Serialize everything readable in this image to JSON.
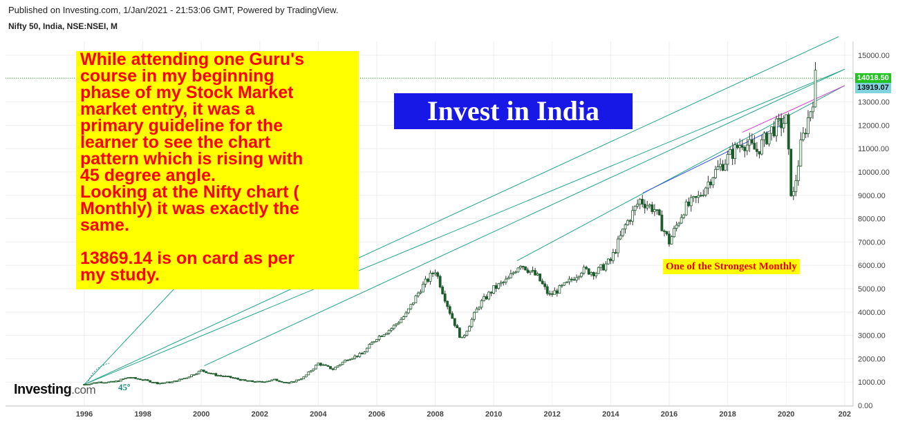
{
  "header": {
    "published": "Published on Investing.com, 1/Jan/2021 - 21:53:06 GMT, Powered by TradingView.",
    "symbol": "Nifty 50, India, NSE:NSEI, M"
  },
  "annotations": {
    "note": "While attending one Guru's\ncourse in my beginning\nphase of my Stock Market\nmarket entry, it was a\nprimary guideline for the\nlearner to see the chart\npattern which is rising with\n45 degree angle.\nLooking at the Nifty chart (\nMonthly) it was exactly the\nsame.\n\n13869.14 is on card as per\nmy study.",
    "banner": "Invest in India",
    "strongest": "One of the Strongest Monthly",
    "angle": "45º"
  },
  "logo": {
    "main": "Investing",
    "suffix": ".com"
  },
  "price_tags": {
    "last": "14018.50",
    "secondary": "13919.07"
  },
  "colors": {
    "up": "#26a69a",
    "down": "#ef5350",
    "trend": "#1fa58a",
    "blue_trend": "#2f4fe0",
    "magenta_trend": "#d63ad6",
    "last_tag": "#22c322",
    "sec_tag": "#7fd4de"
  },
  "chart_data": {
    "type": "line",
    "title": "Nifty 50, India, NSE:NSEI, M",
    "xlabel": "",
    "ylabel": "",
    "x_ticks": [
      "1996",
      "1998",
      "2000",
      "2002",
      "2004",
      "2006",
      "2008",
      "2010",
      "2012",
      "2014",
      "2016",
      "2018",
      "2020",
      "202"
    ],
    "y_ticks": [
      "15000.00",
      "14000.00",
      "13000.00",
      "12000.00",
      "11000.00",
      "10000.00",
      "9000.00",
      "8000.00",
      "7000.00",
      "6000.00",
      "5000.00",
      "4000.00",
      "3000.00",
      "2000.00",
      "1000.00",
      "0.00"
    ],
    "xlim": [
      1996,
      2022
    ],
    "ylim": [
      0,
      15500
    ],
    "series": [
      {
        "values": [
          [
            1996,
            900
          ],
          [
            1996.5,
            1000
          ],
          [
            1997,
            1000
          ],
          [
            1997.5,
            1200
          ],
          [
            1998,
            1100
          ],
          [
            1998.5,
            950
          ],
          [
            1999,
            1000
          ],
          [
            1999.5,
            1200
          ],
          [
            2000,
            1500
          ],
          [
            2000.5,
            1300
          ],
          [
            2001,
            1200
          ],
          [
            2001.5,
            1050
          ],
          [
            2002,
            1000
          ],
          [
            2002.5,
            1100
          ],
          [
            2003,
            950
          ],
          [
            2003.5,
            1200
          ],
          [
            2004,
            1800
          ],
          [
            2004.5,
            1550
          ],
          [
            2005,
            2000
          ],
          [
            2005.5,
            2200
          ],
          [
            2006,
            2900
          ],
          [
            2006.5,
            3300
          ],
          [
            2007,
            3900
          ],
          [
            2007.5,
            5000
          ],
          [
            2008,
            5800
          ],
          [
            2008.5,
            4000
          ],
          [
            2008.9,
            2800
          ],
          [
            2009.5,
            4300
          ],
          [
            2010,
            5000
          ],
          [
            2010.5,
            5400
          ],
          [
            2010.9,
            6100
          ],
          [
            2011.5,
            5500
          ],
          [
            2011.9,
            4700
          ],
          [
            2012.5,
            5200
          ],
          [
            2013,
            5800
          ],
          [
            2013.5,
            5700
          ],
          [
            2014,
            6200
          ],
          [
            2014.5,
            7700
          ],
          [
            2015,
            8800
          ],
          [
            2015.5,
            8400
          ],
          [
            2016,
            7000
          ],
          [
            2016.5,
            8400
          ],
          [
            2017,
            8900
          ],
          [
            2017.5,
            9900
          ],
          [
            2018,
            10600
          ],
          [
            2018.5,
            11300
          ],
          [
            2019,
            10900
          ],
          [
            2019.5,
            11800
          ],
          [
            2020,
            12200
          ],
          [
            2020.2,
            8600
          ],
          [
            2020.5,
            11100
          ],
          [
            2020.9,
            13000
          ],
          [
            2021,
            14018.5
          ]
        ]
      }
    ],
    "trendlines": [
      {
        "from": [
          1996,
          900
        ],
        "to": [
          1999.3,
          5300
        ]
      },
      {
        "from": [
          1996,
          900
        ],
        "to": [
          2021.8,
          15800
        ]
      },
      {
        "from": [
          1996,
          900
        ],
        "to": [
          2022,
          14400
        ]
      },
      {
        "from": [
          2000.1,
          1700
        ],
        "to": [
          2022,
          14400
        ]
      },
      {
        "from": [
          2010.8,
          6200
        ],
        "to": [
          2022,
          13700
        ]
      },
      {
        "from": [
          2015.1,
          9100
        ],
        "to": [
          2020,
          12100
        ]
      },
      {
        "from": [
          2018.5,
          11700
        ],
        "to": [
          2022,
          13700
        ]
      }
    ],
    "reference_line": 14018.5
  }
}
